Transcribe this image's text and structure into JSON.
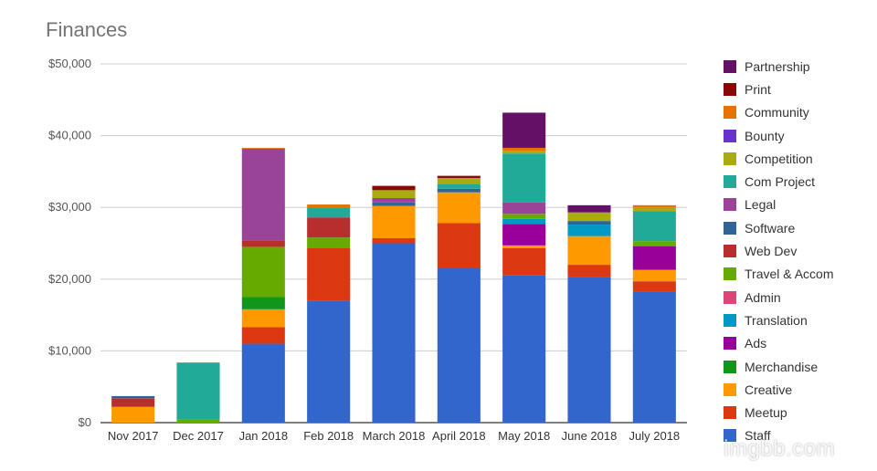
{
  "chart_data": {
    "type": "bar",
    "stacked": true,
    "title": "Finances",
    "xlabel": "",
    "ylabel": "",
    "ylim": [
      0,
      50000
    ],
    "yticks": [
      "$0",
      "$10,000",
      "$20,000",
      "$30,000",
      "$40,000",
      "$50,000"
    ],
    "grid": true,
    "legend_position": "right",
    "categories": [
      "Nov 2017",
      "Dec 2017",
      "Jan 2018",
      "Feb 2018",
      "March 2018",
      "April 2018",
      "May 2018",
      "June 2018",
      "July 2018"
    ],
    "series": [
      {
        "name": "Staff",
        "color": "#3366cc",
        "values": [
          0,
          0,
          11000,
          17000,
          25000,
          21500,
          20500,
          20300,
          18200
        ]
      },
      {
        "name": "Meetup",
        "color": "#dc3912",
        "values": [
          0,
          0,
          2300,
          7300,
          700,
          6300,
          3800,
          1700,
          1500
        ]
      },
      {
        "name": "Creative",
        "color": "#ff9900",
        "values": [
          2200,
          0,
          2500,
          0,
          4500,
          4300,
          400,
          4000,
          1600
        ]
      },
      {
        "name": "Merchandise",
        "color": "#109618",
        "values": [
          0,
          0,
          1700,
          0,
          0,
          0,
          0,
          0,
          0
        ]
      },
      {
        "name": "Ads",
        "color": "#990099",
        "values": [
          0,
          0,
          0,
          0,
          0,
          0,
          3000,
          0,
          3300
        ]
      },
      {
        "name": "Translation",
        "color": "#0099c6",
        "values": [
          0,
          0,
          0,
          0,
          0,
          0,
          700,
          1600,
          0
        ]
      },
      {
        "name": "Admin",
        "color": "#dd4477",
        "values": [
          0,
          0,
          0,
          0,
          0,
          0,
          0,
          0,
          0
        ]
      },
      {
        "name": "Travel & Accom",
        "color": "#66aa00",
        "values": [
          0,
          500,
          7000,
          1500,
          0,
          0,
          700,
          0,
          700
        ]
      },
      {
        "name": "Web Dev",
        "color": "#b82e2e",
        "values": [
          1200,
          0,
          900,
          2800,
          0,
          0,
          0,
          0,
          0
        ]
      },
      {
        "name": "Software",
        "color": "#316395",
        "values": [
          300,
          0,
          0,
          0,
          500,
          500,
          0,
          500,
          0
        ]
      },
      {
        "name": "Legal",
        "color": "#994499",
        "values": [
          0,
          0,
          12800,
          0,
          600,
          0,
          1600,
          0,
          0
        ]
      },
      {
        "name": "Com Project",
        "color": "#22aa99",
        "values": [
          0,
          7800,
          0,
          1300,
          0,
          700,
          6800,
          0,
          4200
        ]
      },
      {
        "name": "Competition",
        "color": "#aaaa11",
        "values": [
          0,
          0,
          0,
          0,
          1100,
          800,
          400,
          1200,
          500
        ]
      },
      {
        "name": "Bounty",
        "color": "#6633cc",
        "values": [
          0,
          0,
          0,
          0,
          0,
          0,
          0,
          0,
          0
        ]
      },
      {
        "name": "Community",
        "color": "#e67300",
        "values": [
          0,
          100,
          100,
          500,
          0,
          0,
          400,
          0,
          300
        ]
      },
      {
        "name": "Print",
        "color": "#8b0707",
        "values": [
          0,
          0,
          0,
          0,
          600,
          300,
          0,
          0,
          0
        ]
      },
      {
        "name": "Partnership",
        "color": "#651067",
        "values": [
          0,
          0,
          0,
          0,
          0,
          0,
          4900,
          1000,
          0
        ]
      }
    ]
  },
  "watermark": "imgbb.com"
}
